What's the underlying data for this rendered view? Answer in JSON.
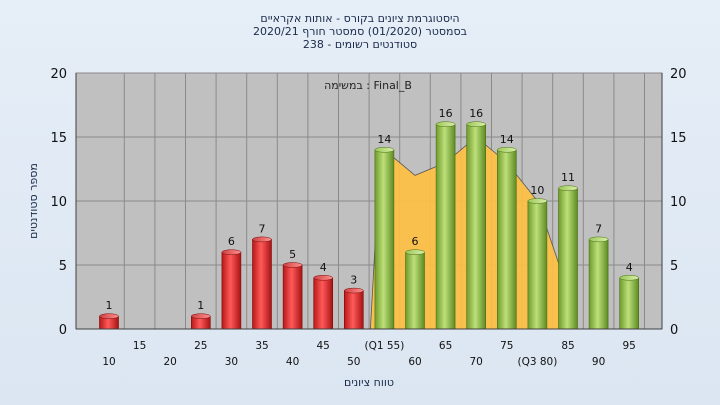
{
  "chart_data": {
    "type": "bar",
    "title_lines": [
      "היסטוגרמת ציונים בקורס - אותות אקראיים",
      "בסמסטר  (01/2020)  סמסטר חורף  2020/21",
      "סטודנטים רשומים - 238"
    ],
    "annotation": "במשימה : Final_B",
    "xlabel": "טווח ציונים",
    "ylabel": "מספר סטודנטים",
    "ylim": [
      0,
      20
    ],
    "yticks": [
      0,
      5,
      10,
      15,
      20
    ],
    "categories": [
      "10",
      "15",
      "20",
      "25",
      "30",
      "35",
      "40",
      "45",
      "50",
      "(Q1 55)",
      "60",
      "65",
      "70",
      "75",
      "(Q3 80)",
      "85",
      "90",
      "95"
    ],
    "values": [
      1,
      0,
      0,
      1,
      6,
      7,
      5,
      4,
      3,
      14,
      6,
      16,
      16,
      14,
      10,
      11,
      7,
      4
    ],
    "value_labels": [
      "1",
      "",
      "",
      "1",
      "6",
      "7",
      "5",
      "4",
      "3",
      "14",
      "6",
      "16",
      "16",
      "14",
      "10",
      "11",
      "7",
      "4"
    ],
    "bar_colors": [
      "#e03030",
      "#e03030",
      "#e03030",
      "#e03030",
      "#e03030",
      "#e03030",
      "#e03030",
      "#e03030",
      "#e03030",
      "#8cbf3f",
      "#8cbf3f",
      "#8cbf3f",
      "#8cbf3f",
      "#8cbf3f",
      "#8cbf3f",
      "#8cbf3f",
      "#8cbf3f",
      "#8cbf3f"
    ],
    "area_series": {
      "color": "#ffc040",
      "x_categories": [
        "(Q1 55)",
        "60",
        "65",
        "70",
        "75",
        "(Q3 80)",
        "85"
      ],
      "values": [
        14,
        12,
        13,
        15,
        13,
        10,
        3
      ]
    },
    "grid": true,
    "colors": {
      "plot_bg": "#c0c0c0",
      "grid": "#8a8a8a",
      "low_bar": "#e03030",
      "high_bar": "#8cbf3f",
      "area": "#ffc040"
    }
  }
}
